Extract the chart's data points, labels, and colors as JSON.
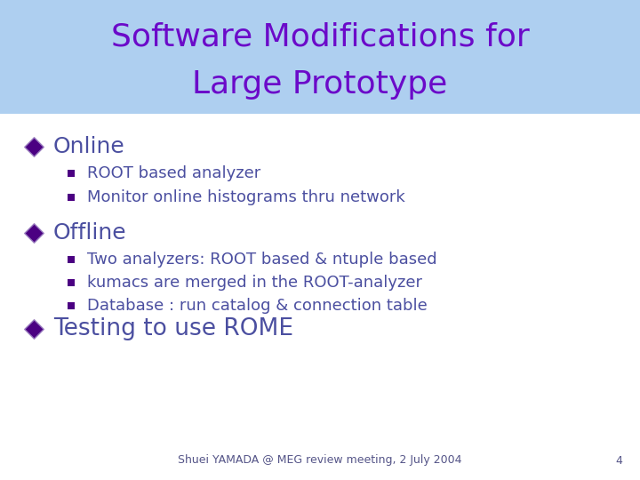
{
  "title_line1": "Software Modifications for",
  "title_line2": "Large Prototype",
  "title_color": "#6B0AC9",
  "title_bg_color": "#AECFF0",
  "bg_color": "#FFFFFF",
  "bullet_color": "#4B0082",
  "text_color": "#4B4FA0",
  "sub_text_color": "#4B4FA0",
  "footer_text": "Shuei YAMADA @ MEG review meeting, 2 July 2004",
  "footer_number": "4",
  "title_fontsize": 26,
  "section_fontsize": 18,
  "item_fontsize": 13,
  "sections": [
    {
      "label": "Online",
      "items": [
        "ROOT based analyzer",
        "Monitor online histograms thru network"
      ]
    },
    {
      "label": "Offline",
      "items": [
        "Two analyzers: ROOT based & ntuple based",
        "kumacs are merged in the ROOT-analyzer",
        "Database : run catalog & connection table"
      ]
    },
    {
      "label": "Testing to use ROME",
      "items": []
    }
  ]
}
